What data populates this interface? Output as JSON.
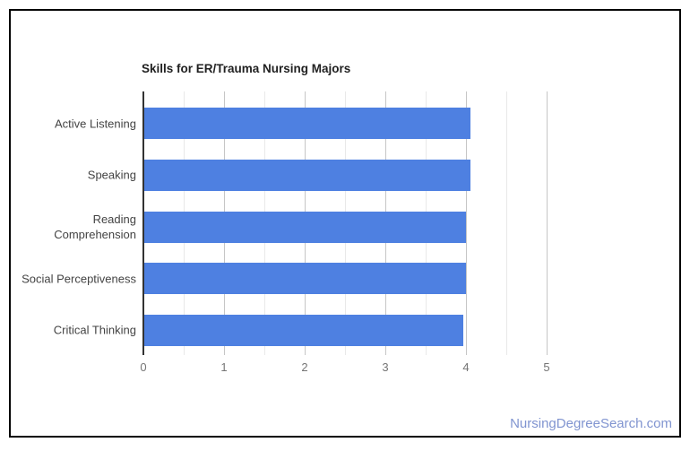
{
  "chart_data": {
    "type": "bar",
    "orientation": "horizontal",
    "title": "Skills for ER/Trauma Nursing Majors",
    "categories": [
      "Active Listening",
      "Speaking",
      "Reading\nComprehension",
      "Social Perceptiveness",
      "Critical Thinking"
    ],
    "values": [
      4.06,
      4.06,
      4.0,
      4.0,
      3.97
    ],
    "xlabel": "",
    "ylabel": "",
    "xlim": [
      0,
      5
    ],
    "x_ticks": [
      0,
      1,
      2,
      3,
      4,
      5
    ],
    "minor_tick_step": 0.5,
    "grid": true,
    "legend": "none",
    "bar_color": "#4e80e1"
  },
  "colors": {
    "bar": "#4e80e1",
    "axis_line": "#333333",
    "gridline_major": "#c6c6c6",
    "gridline_minor": "#e9e9e9",
    "title_text": "#212121",
    "category_text": "#434343",
    "tick_text": "#757575",
    "watermark_text": "#8094d0",
    "card_border": "#000000"
  },
  "footer": {
    "watermark": "NursingDegreeSearch.com"
  }
}
